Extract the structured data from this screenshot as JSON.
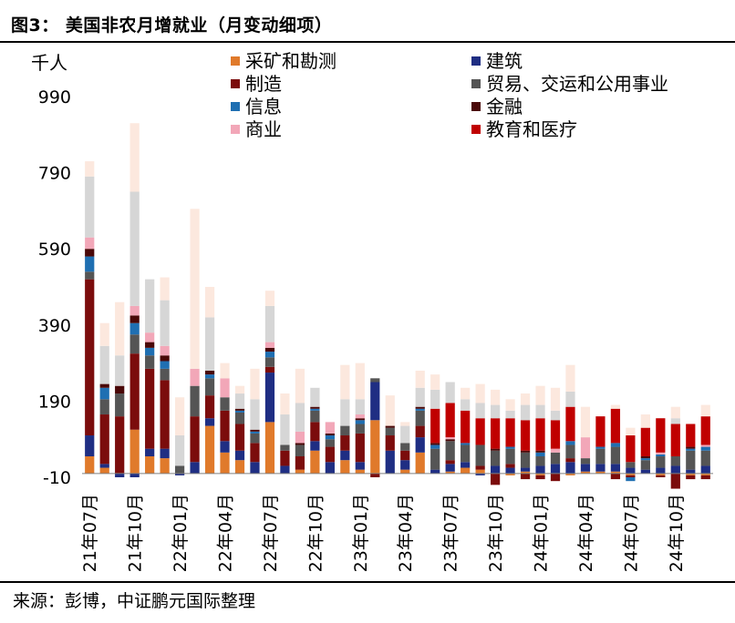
{
  "title": "图3：  美国非农月增就业（月变动细项）",
  "source": "来源：彭博，中证鹏元国际整理",
  "colors": {
    "mining": "#E07A2B",
    "construction": "#1F2E83",
    "manufacturing": "#7B0C0C",
    "trade": "#555555",
    "information": "#1F6FB2",
    "finance": "#4A0808",
    "business": "#F2A7B8",
    "health": "#C00000",
    "prof": "#D6D6D6",
    "leisure": "#FCE8DE"
  },
  "chart_data": {
    "type": "bar",
    "stacked": true,
    "yunit": "千人",
    "ylim": [
      -10,
      990
    ],
    "yticks": [
      -10,
      190,
      390,
      590,
      790,
      990
    ],
    "xtick_labels": [
      "21年07月",
      "21年10月",
      "22年01月",
      "22年04月",
      "22年07月",
      "22年10月",
      "23年01月",
      "23年04月",
      "23年07月",
      "23年10月",
      "24年01月",
      "24年04月",
      "24年07月",
      "24年10月"
    ],
    "categories": [
      "21年07月",
      "21年08月",
      "21年09月",
      "21年10月",
      "21年11月",
      "21年12月",
      "22年01月",
      "22年02月",
      "22年03月",
      "22年04月",
      "22年05月",
      "22年06月",
      "22年07月",
      "22年08月",
      "22年09月",
      "22年10月",
      "22年11月",
      "22年12月",
      "23年01月",
      "23年02月",
      "23年03月",
      "23年04月",
      "23年05月",
      "23年06月",
      "23年07月",
      "23年08月",
      "23年09月",
      "23年10月",
      "23年11月",
      "23年12月",
      "24年01月",
      "24年02月",
      "24年03月",
      "24年04月",
      "24年05月",
      "24年06月",
      "24年07月",
      "24年08月",
      "24年09月",
      "24年10月",
      "24年11月",
      "24年12月"
    ],
    "legend": [
      {
        "key": "mining",
        "label": "采矿和勘测"
      },
      {
        "key": "construction",
        "label": "建筑"
      },
      {
        "key": "manufacturing",
        "label": "制造"
      },
      {
        "key": "trade",
        "label": "贸易、交运和公用事业"
      },
      {
        "key": "information",
        "label": "信息"
      },
      {
        "key": "finance",
        "label": "金融"
      },
      {
        "key": "business",
        "label": "商业"
      },
      {
        "key": "health",
        "label": "教育和医疗"
      }
    ],
    "series": [
      {
        "key": "mining",
        "name": "采矿和勘测",
        "values": [
          45,
          15,
          0,
          115,
          45,
          40,
          0,
          0,
          125,
          55,
          35,
          0,
          135,
          0,
          10,
          60,
          0,
          35,
          10,
          140,
          0,
          10,
          55,
          0,
          5,
          15,
          10,
          0,
          -5,
          5,
          -5,
          0,
          -5,
          5,
          5,
          5,
          -5,
          0,
          -5,
          0,
          -5,
          -5
        ]
      },
      {
        "key": "construction",
        "name": "建筑",
        "values": [
          55,
          10,
          -10,
          -10,
          20,
          25,
          -5,
          30,
          20,
          30,
          25,
          30,
          130,
          20,
          0,
          25,
          30,
          25,
          20,
          100,
          60,
          25,
          40,
          10,
          20,
          15,
          -5,
          20,
          15,
          10,
          20,
          25,
          30,
          20,
          20,
          20,
          15,
          10,
          15,
          20,
          10,
          20
        ]
      },
      {
        "key": "manufacturing",
        "name": "制造",
        "values": [
          410,
          130,
          150,
          200,
          210,
          180,
          0,
          120,
          60,
          80,
          70,
          50,
          15,
          40,
          35,
          50,
          40,
          40,
          75,
          -10,
          40,
          25,
          30,
          0,
          10,
          0,
          10,
          -30,
          10,
          -15,
          -10,
          -20,
          10,
          0,
          0,
          -15,
          -5,
          0,
          -5,
          -40,
          -10,
          -10
        ]
      },
      {
        "key": "trade",
        "name": "贸易、交运和公用事业",
        "values": [
          20,
          40,
          60,
          50,
          35,
          30,
          20,
          80,
          45,
          35,
          30,
          25,
          25,
          15,
          30,
          30,
          20,
          25,
          25,
          10,
          20,
          20,
          40,
          55,
          50,
          45,
          55,
          40,
          40,
          40,
          25,
          30,
          35,
          15,
          40,
          45,
          15,
          25,
          30,
          25,
          50,
          40
        ]
      },
      {
        "key": "information",
        "name": "信息",
        "values": [
          40,
          30,
          0,
          30,
          20,
          20,
          0,
          0,
          10,
          0,
          5,
          5,
          15,
          0,
          0,
          5,
          10,
          0,
          10,
          0,
          0,
          0,
          5,
          10,
          0,
          5,
          0,
          0,
          5,
          0,
          10,
          0,
          10,
          0,
          5,
          10,
          -10,
          5,
          5,
          0,
          5,
          10
        ]
      },
      {
        "key": "finance",
        "name": "金融",
        "values": [
          20,
          10,
          20,
          20,
          15,
          15,
          0,
          0,
          10,
          0,
          5,
          5,
          10,
          0,
          5,
          5,
          5,
          0,
          5,
          0,
          5,
          0,
          5,
          5,
          5,
          0,
          0,
          5,
          0,
          5,
          5,
          0,
          0,
          0,
          0,
          0,
          0,
          5,
          0,
          0,
          5,
          0
        ]
      },
      {
        "key": "business",
        "name": "商业",
        "values": [
          30,
          0,
          0,
          25,
          25,
          25,
          0,
          45,
          0,
          50,
          0,
          0,
          15,
          0,
          30,
          0,
          30,
          0,
          10,
          0,
          0,
          0,
          0,
          0,
          5,
          0,
          0,
          0,
          0,
          0,
          0,
          10,
          0,
          55,
          0,
          0,
          0,
          0,
          5,
          0,
          0,
          5
        ]
      },
      {
        "key": "health",
        "name": "教育和医疗",
        "values": [
          0,
          0,
          0,
          0,
          0,
          0,
          0,
          0,
          0,
          0,
          0,
          0,
          0,
          0,
          0,
          0,
          0,
          0,
          0,
          0,
          0,
          0,
          0,
          90,
          90,
          85,
          70,
          80,
          75,
          80,
          85,
          75,
          90,
          0,
          80,
          90,
          70,
          75,
          90,
          85,
          60,
          75
        ]
      },
      {
        "key": "prof",
        "name": "",
        "values": [
          160,
          100,
          80,
          300,
          140,
          120,
          80,
          0,
          140,
          0,
          40,
          80,
          95,
          80,
          75,
          50,
          0,
          70,
          40,
          0,
          0,
          45,
          50,
          50,
          55,
          30,
          40,
          35,
          20,
          40,
          35,
          25,
          40,
          0,
          0,
          0,
          0,
          0,
          0,
          15,
          0,
          0
        ]
      },
      {
        "key": "leisure",
        "name": "",
        "values": [
          40,
          60,
          140,
          180,
          0,
          60,
          100,
          420,
          80,
          40,
          20,
          80,
          40,
          55,
          90,
          0,
          0,
          90,
          95,
          0,
          80,
          10,
          45,
          40,
          0,
          30,
          50,
          40,
          30,
          30,
          50,
          60,
          70,
          80,
          0,
          10,
          20,
          35,
          0,
          30,
          0,
          30
        ]
      }
    ]
  }
}
